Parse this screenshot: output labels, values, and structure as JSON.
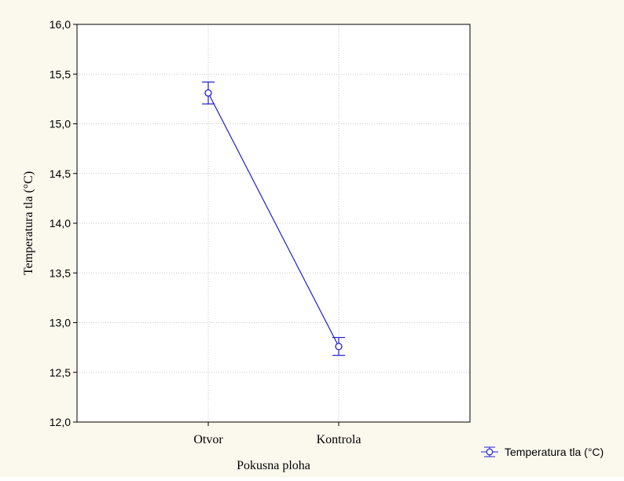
{
  "colors": {
    "background": "#fbf8ee",
    "plot_background": "#ffffff",
    "series": "#1f1fcf",
    "grid": "#b8b8b8",
    "frame": "#000000",
    "text": "#000000"
  },
  "chart_data": {
    "type": "line",
    "title": "",
    "xlabel": "Pokusna ploha",
    "ylabel": "Temperatura tla (°C)",
    "categories": [
      "Otvor",
      "Kontrola"
    ],
    "ylim": [
      12.0,
      16.0
    ],
    "yticks": [
      12.0,
      12.5,
      13.0,
      13.5,
      14.0,
      14.5,
      15.0,
      15.5,
      16.0
    ],
    "ytick_labels": [
      "12,0",
      "12,5",
      "13,0",
      "13,5",
      "14,0",
      "14,5",
      "15,0",
      "15,5",
      "16,0"
    ],
    "grid": true,
    "legend_position": "bottom-right",
    "series": [
      {
        "name": "Temperatura tla (°C)",
        "values": [
          15.31,
          12.76
        ],
        "error_low": [
          15.2,
          12.67
        ],
        "error_high": [
          15.42,
          12.85
        ],
        "marker": "open-circle"
      }
    ]
  }
}
